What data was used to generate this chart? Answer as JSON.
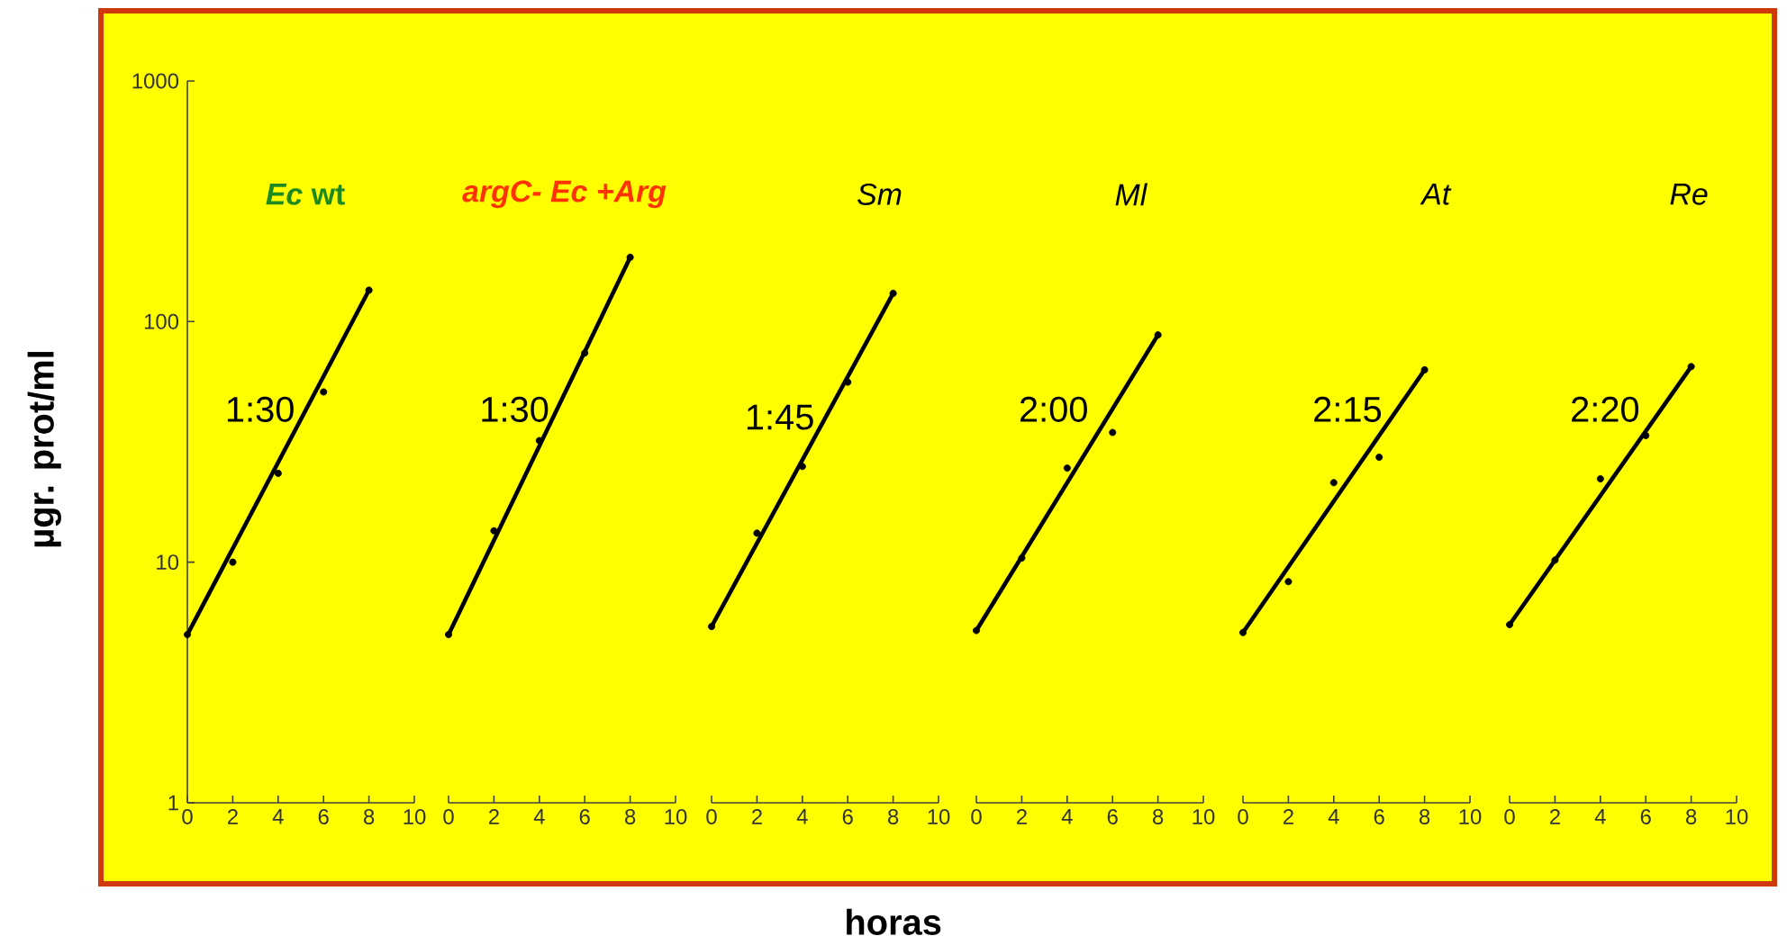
{
  "chart_data": [
    {
      "type": "scatter",
      "title": "*Ec* wt",
      "ylabel": "µgr. prot/ml",
      "log": "y",
      "xlim": [
        0,
        10
      ],
      "xticks": [
        0,
        2,
        4,
        6,
        8,
        10
      ],
      "ylim": [
        1,
        1000
      ],
      "yticks": [
        1,
        10,
        100,
        1000
      ],
      "annotations": [
        "1:30"
      ],
      "series": [
        {
          "color": "#000000",
          "marker": "circle",
          "x": [
            0,
            2,
            4,
            6,
            8
          ],
          "values": [
            5.0,
            10,
            23.4,
            51,
            135
          ]
        },
        {
          "type": "line",
          "color": "#000000",
          "x": [
            0,
            8
          ],
          "values": [
            5.0,
            135
          ]
        }
      ]
    },
    {
      "type": "scatter",
      "title": "argC- Ec +Arg",
      "log": "y",
      "xlim": [
        0,
        10
      ],
      "xticks": [
        0,
        2,
        4,
        6,
        8,
        10
      ],
      "ylim": [
        1,
        1000
      ],
      "tick_labels": "x",
      "annotations": [
        "1:30"
      ],
      "series": [
        {
          "color": "#000000",
          "marker": "circle",
          "x": [
            0,
            2,
            4,
            6,
            8
          ],
          "values": [
            5.0,
            13.5,
            32,
            74,
            185
          ]
        },
        {
          "type": "line",
          "color": "#000000",
          "x": [
            0,
            8
          ],
          "values": [
            5.0,
            185
          ]
        }
      ]
    },
    {
      "type": "scatter",
      "title": "Sm",
      "xlabel": "horas",
      "log": "y",
      "xlim": [
        0,
        10
      ],
      "xticks": [
        0,
        2,
        4,
        6,
        8,
        10
      ],
      "ylim": [
        1,
        1000
      ],
      "tick_labels": "x",
      "annotations": [
        "1:45"
      ],
      "series": [
        {
          "color": "#000000",
          "marker": "circle",
          "x": [
            0,
            2,
            4,
            6,
            8
          ],
          "values": [
            5.4,
            13.2,
            25,
            56,
            131
          ]
        },
        {
          "type": "line",
          "color": "#000000",
          "x": [
            0,
            8
          ],
          "values": [
            5.4,
            131
          ]
        }
      ]
    },
    {
      "type": "scatter",
      "title": "Ml",
      "log": "y",
      "xlim": [
        0,
        10
      ],
      "xticks": [
        0,
        2,
        4,
        6,
        8,
        10
      ],
      "ylim": [
        1,
        1000
      ],
      "tick_labels": "x",
      "annotations": [
        "2:00"
      ],
      "series": [
        {
          "color": "#000000",
          "marker": "circle",
          "x": [
            0,
            2,
            4,
            6,
            8
          ],
          "values": [
            5.2,
            10.4,
            24.6,
            34.6,
            88
          ]
        },
        {
          "type": "line",
          "color": "#000000",
          "x": [
            0,
            8
          ],
          "values": [
            5.2,
            88
          ]
        }
      ]
    },
    {
      "type": "scatter",
      "title": "At",
      "log": "y",
      "xlim": [
        0,
        10
      ],
      "xticks": [
        0,
        2,
        4,
        6,
        8,
        10
      ],
      "ylim": [
        1,
        1000
      ],
      "tick_labels": "x",
      "annotations": [
        "2:15"
      ],
      "series": [
        {
          "color": "#000000",
          "marker": "circle",
          "x": [
            0,
            2,
            4,
            6,
            8
          ],
          "values": [
            5.1,
            8.3,
            21.4,
            27.3,
            63
          ]
        },
        {
          "type": "line",
          "color": "#000000",
          "x": [
            0,
            8
          ],
          "values": [
            5.1,
            63
          ]
        }
      ]
    },
    {
      "type": "scatter",
      "title": "Re",
      "log": "y",
      "xlim": [
        0,
        10
      ],
      "xticks": [
        0,
        2,
        4,
        6,
        8,
        10
      ],
      "ylim": [
        1,
        1000
      ],
      "tick_labels": "x",
      "annotations": [
        "2:20"
      ],
      "series": [
        {
          "color": "#000000",
          "marker": "circle",
          "x": [
            0,
            2,
            4,
            6,
            8
          ],
          "values": [
            5.5,
            10.2,
            22.2,
            33.6,
            65
          ]
        },
        {
          "type": "line",
          "color": "#000000",
          "x": [
            0,
            8
          ],
          "values": [
            5.5,
            65
          ]
        }
      ]
    }
  ]
}
